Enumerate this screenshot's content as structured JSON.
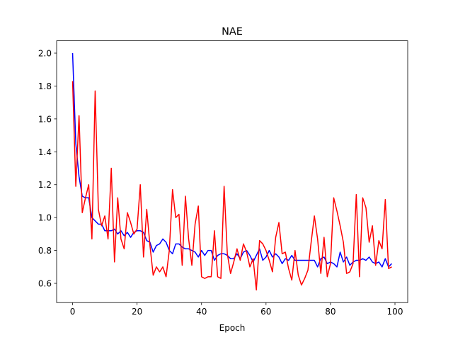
{
  "chart_data": {
    "type": "line",
    "title": "NAE",
    "xlabel": "Epoch",
    "x": [
      0,
      1,
      2,
      3,
      4,
      5,
      6,
      7,
      8,
      9,
      10,
      11,
      12,
      13,
      14,
      15,
      16,
      17,
      18,
      19,
      20,
      21,
      22,
      23,
      24,
      25,
      26,
      27,
      28,
      29,
      30,
      31,
      32,
      33,
      34,
      35,
      36,
      37,
      38,
      39,
      40,
      41,
      42,
      43,
      44,
      45,
      46,
      47,
      48,
      49,
      50,
      51,
      52,
      53,
      54,
      55,
      56,
      57,
      58,
      59,
      60,
      61,
      62,
      63,
      64,
      65,
      66,
      67,
      68,
      69,
      70,
      71,
      72,
      73,
      74,
      75,
      76,
      77,
      78,
      79,
      80,
      81,
      82,
      83,
      84,
      85,
      86,
      87,
      88,
      89,
      90,
      91,
      92,
      93,
      94,
      95,
      96,
      97,
      98,
      99
    ],
    "series": [
      {
        "color": "#0000ff",
        "values": [
          2.0,
          1.45,
          1.25,
          1.13,
          1.12,
          1.12,
          1.0,
          0.98,
          0.96,
          0.96,
          0.92,
          0.92,
          0.92,
          0.93,
          0.9,
          0.92,
          0.89,
          0.91,
          0.88,
          0.91,
          0.92,
          0.92,
          0.91,
          0.86,
          0.85,
          0.79,
          0.83,
          0.84,
          0.87,
          0.85,
          0.8,
          0.78,
          0.84,
          0.84,
          0.82,
          0.81,
          0.81,
          0.8,
          0.79,
          0.76,
          0.8,
          0.77,
          0.8,
          0.8,
          0.74,
          0.77,
          0.78,
          0.78,
          0.77,
          0.75,
          0.75,
          0.78,
          0.75,
          0.79,
          0.8,
          0.77,
          0.73,
          0.77,
          0.81,
          0.74,
          0.76,
          0.8,
          0.76,
          0.78,
          0.76,
          0.72,
          0.75,
          0.74,
          0.77,
          0.74,
          0.74,
          0.74,
          0.74,
          0.74,
          0.74,
          0.74,
          0.7,
          0.75,
          0.76,
          0.72,
          0.73,
          0.72,
          0.7,
          0.79,
          0.73,
          0.76,
          0.71,
          0.73,
          0.74,
          0.74,
          0.75,
          0.74,
          0.76,
          0.73,
          0.72,
          0.73,
          0.7,
          0.75,
          0.7,
          0.72
        ]
      },
      {
        "color": "#ff0000",
        "values": [
          1.83,
          1.19,
          1.62,
          1.03,
          1.12,
          1.2,
          0.87,
          1.77,
          1.05,
          0.95,
          1.01,
          0.87,
          1.3,
          0.73,
          1.12,
          0.87,
          0.81,
          1.03,
          0.97,
          0.9,
          0.93,
          1.2,
          0.76,
          1.05,
          0.83,
          0.65,
          0.7,
          0.67,
          0.7,
          0.64,
          0.8,
          1.17,
          1.0,
          1.02,
          0.71,
          1.13,
          0.87,
          0.71,
          0.96,
          1.07,
          0.64,
          0.63,
          0.64,
          0.64,
          0.92,
          0.64,
          0.63,
          1.19,
          0.78,
          0.66,
          0.73,
          0.81,
          0.74,
          0.84,
          0.79,
          0.7,
          0.75,
          0.56,
          0.86,
          0.84,
          0.8,
          0.74,
          0.67,
          0.88,
          0.97,
          0.78,
          0.79,
          0.69,
          0.62,
          0.8,
          0.65,
          0.59,
          0.63,
          0.68,
          0.85,
          1.01,
          0.87,
          0.66,
          0.88,
          0.64,
          0.72,
          1.12,
          1.04,
          0.95,
          0.85,
          0.66,
          0.67,
          0.72,
          1.14,
          0.64,
          1.12,
          1.06,
          0.85,
          0.95,
          0.71,
          0.86,
          0.81,
          1.11,
          0.69,
          0.7
        ]
      }
    ],
    "xlim": [
      -4.95,
      103.95
    ],
    "xticks": [
      0,
      20,
      40,
      60,
      80,
      100
    ],
    "ylim": [
      0.483,
      2.075
    ],
    "yticks": [
      0.6,
      0.8,
      {
        "value": 1.0,
        "label": "1.0"
      },
      1.2,
      1.4,
      1.6,
      1.8,
      {
        "value": 2.0,
        "label": "2.0"
      }
    ]
  }
}
